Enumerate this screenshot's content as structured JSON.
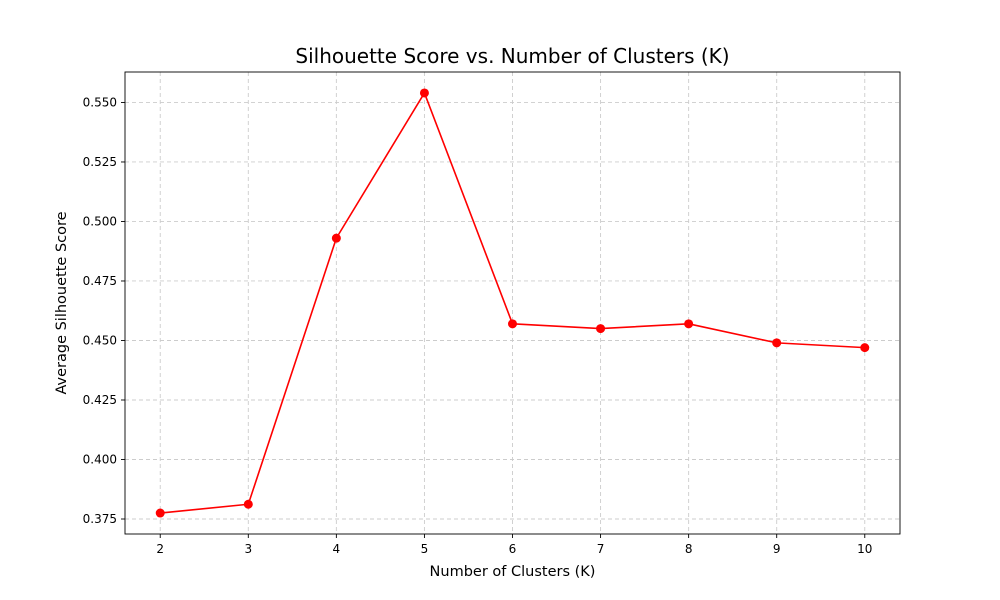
{
  "chart_data": {
    "type": "line",
    "title": "Silhouette Score vs. Number of Clusters (K)",
    "xlabel": "Number of Clusters (K)",
    "ylabel": "Average Silhouette Score",
    "x": [
      2,
      3,
      4,
      5,
      6,
      7,
      8,
      9,
      10
    ],
    "series": [
      {
        "values": [
          0.3775,
          0.3812,
          0.493,
          0.554,
          0.457,
          0.455,
          0.457,
          0.449,
          0.447
        ],
        "color": "#ff0000",
        "marker": "circle"
      }
    ],
    "xticks": [
      "2",
      "3",
      "4",
      "5",
      "6",
      "7",
      "8",
      "9",
      "10"
    ],
    "yticks": [
      {
        "value": 0.375,
        "label": "0.375"
      },
      {
        "value": 0.4,
        "label": "0.400"
      },
      {
        "value": 0.425,
        "label": "0.425"
      },
      {
        "value": 0.45,
        "label": "0.450"
      },
      {
        "value": 0.475,
        "label": "0.475"
      },
      {
        "value": 0.5,
        "label": "0.500"
      },
      {
        "value": 0.525,
        "label": "0.525"
      },
      {
        "value": 0.55,
        "label": "0.550"
      }
    ],
    "xlim": [
      1.6,
      10.4
    ],
    "ylim": [
      0.3687,
      0.5628
    ],
    "grid": true,
    "grid_style": "dashed",
    "grid_color": "#cccccc",
    "legend": "none"
  }
}
